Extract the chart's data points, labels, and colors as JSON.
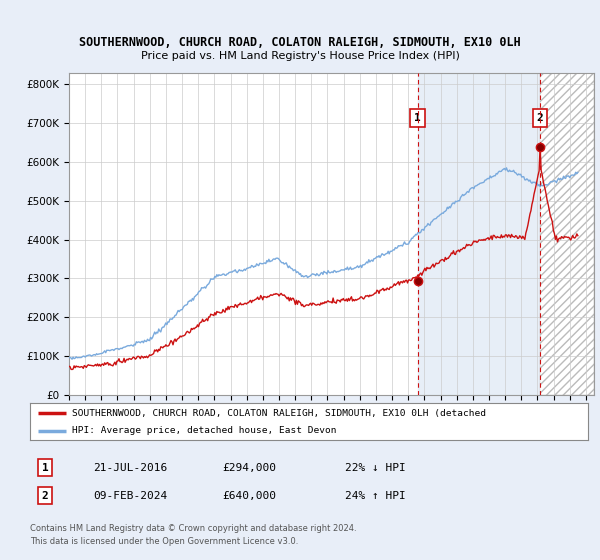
{
  "title1": "SOUTHERNWOOD, CHURCH ROAD, COLATON RALEIGH, SIDMOUTH, EX10 0LH",
  "title2": "Price paid vs. HM Land Registry's House Price Index (HPI)",
  "background_color": "#e8eef8",
  "plot_bg_color": "#ffffff",
  "grid_color": "#cccccc",
  "hpi_color": "#7aaadd",
  "price_color": "#cc1111",
  "dashed_line_color": "#cc1111",
  "sale1_date": "21-JUL-2016",
  "sale1_price": 294000,
  "sale1_hpi_diff": "22% ↓ HPI",
  "sale2_date": "09-FEB-2024",
  "sale2_price": 640000,
  "sale2_hpi_diff": "24% ↑ HPI",
  "legend1": "SOUTHERNWOOD, CHURCH ROAD, COLATON RALEIGH, SIDMOUTH, EX10 0LH (detached",
  "legend2": "HPI: Average price, detached house, East Devon",
  "footer1": "Contains HM Land Registry data © Crown copyright and database right 2024.",
  "footer2": "This data is licensed under the Open Government Licence v3.0.",
  "ylim_max": 830000,
  "shade_color": "#dde8f5",
  "hatch_color": "#cccccc"
}
